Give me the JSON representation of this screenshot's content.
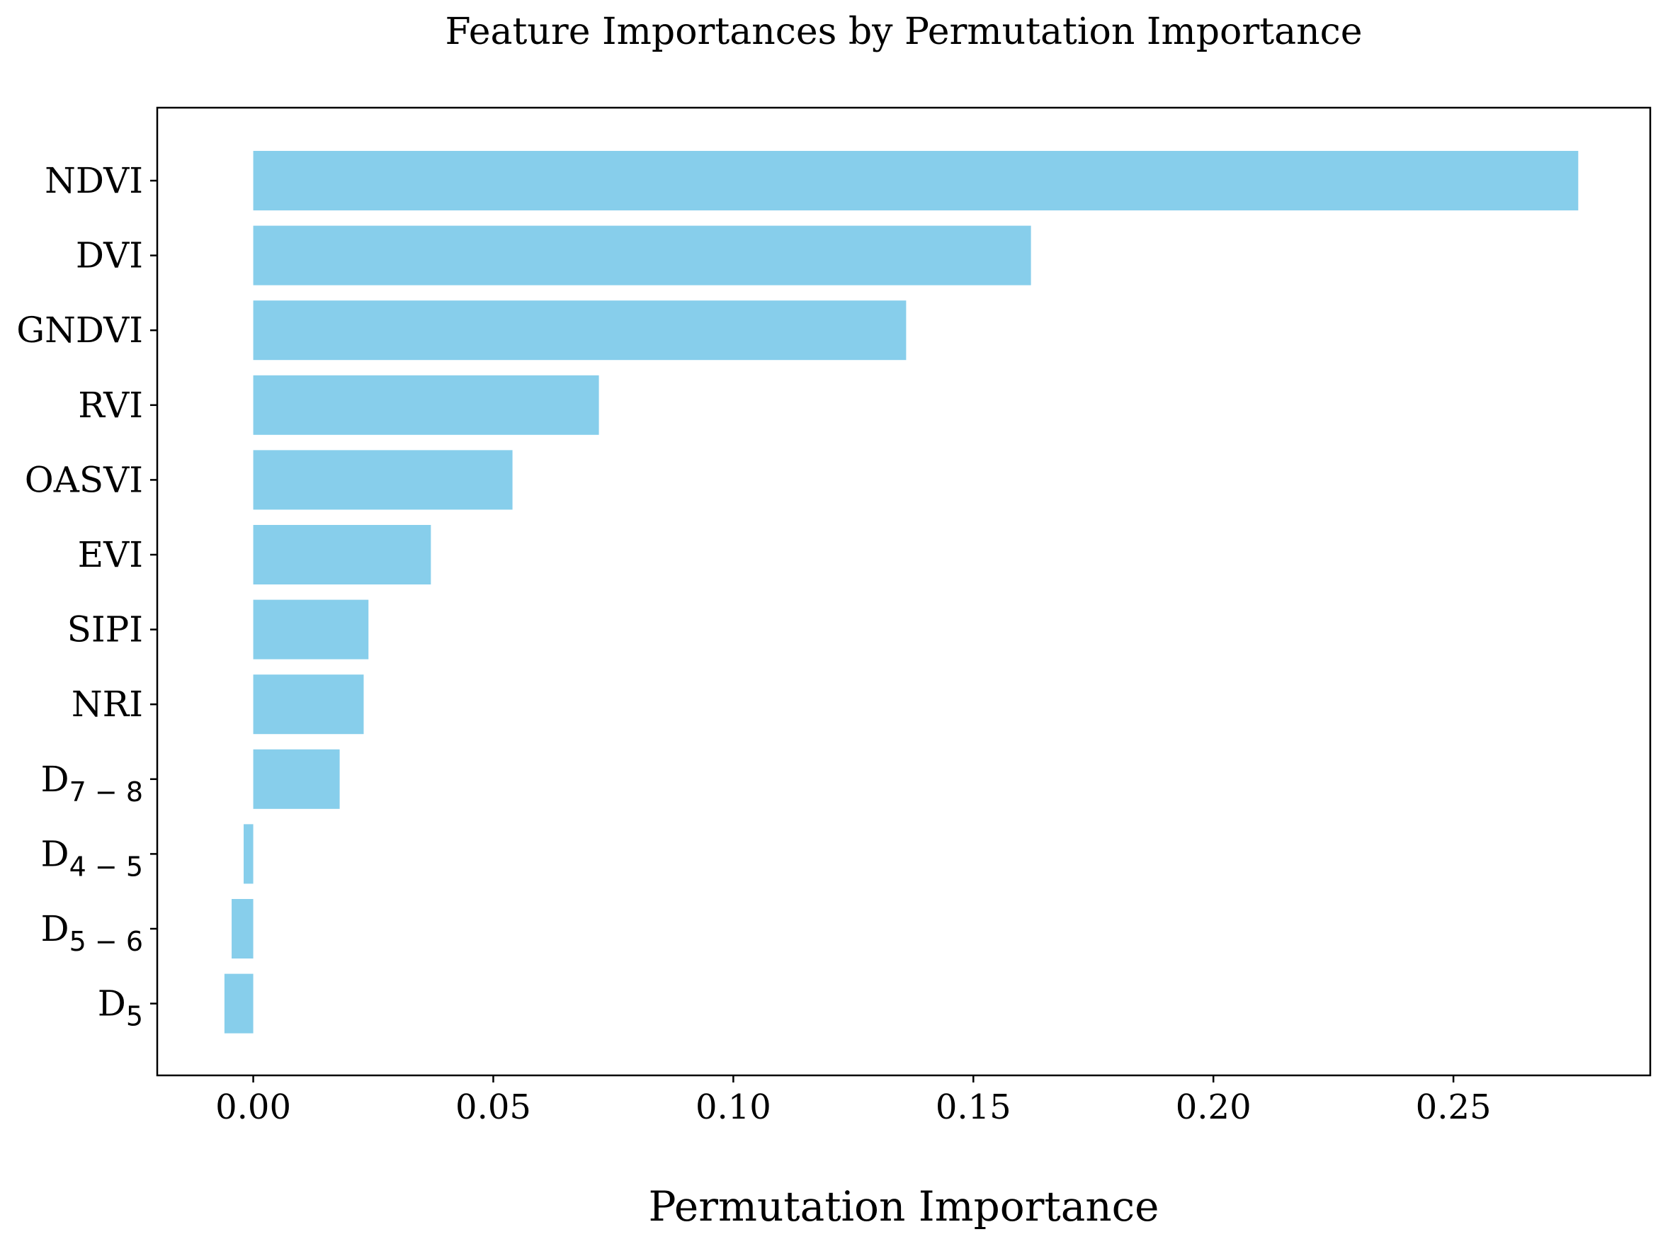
{
  "chart_data": {
    "type": "bar",
    "orientation": "horizontal",
    "title": "Feature Importances by Permutation Importance",
    "xlabel": "Permutation Importance",
    "ylabel": "",
    "xlim": [
      -0.02,
      0.291
    ],
    "xticks": [
      0.0,
      0.05,
      0.1,
      0.15,
      0.2,
      0.25
    ],
    "xtick_labels": [
      "0.00",
      "0.05",
      "0.10",
      "0.15",
      "0.20",
      "0.25"
    ],
    "grid": false,
    "bar_color": "#87CEEB",
    "categories": [
      {
        "main": "NDVI",
        "sub": ""
      },
      {
        "main": "DVI",
        "sub": ""
      },
      {
        "main": "GNDVI",
        "sub": ""
      },
      {
        "main": "RVI",
        "sub": ""
      },
      {
        "main": "OASVI",
        "sub": ""
      },
      {
        "main": "EVI",
        "sub": ""
      },
      {
        "main": "SIPI",
        "sub": ""
      },
      {
        "main": "NRI",
        "sub": ""
      },
      {
        "main": "D",
        "sub": "7 − 8"
      },
      {
        "main": "D",
        "sub": "4 − 5"
      },
      {
        "main": "D",
        "sub": "5 − 6"
      },
      {
        "main": "D",
        "sub": "5"
      }
    ],
    "values": [
      0.276,
      0.162,
      0.136,
      0.072,
      0.054,
      0.037,
      0.024,
      0.023,
      0.018,
      -0.002,
      -0.0045,
      -0.006
    ]
  }
}
